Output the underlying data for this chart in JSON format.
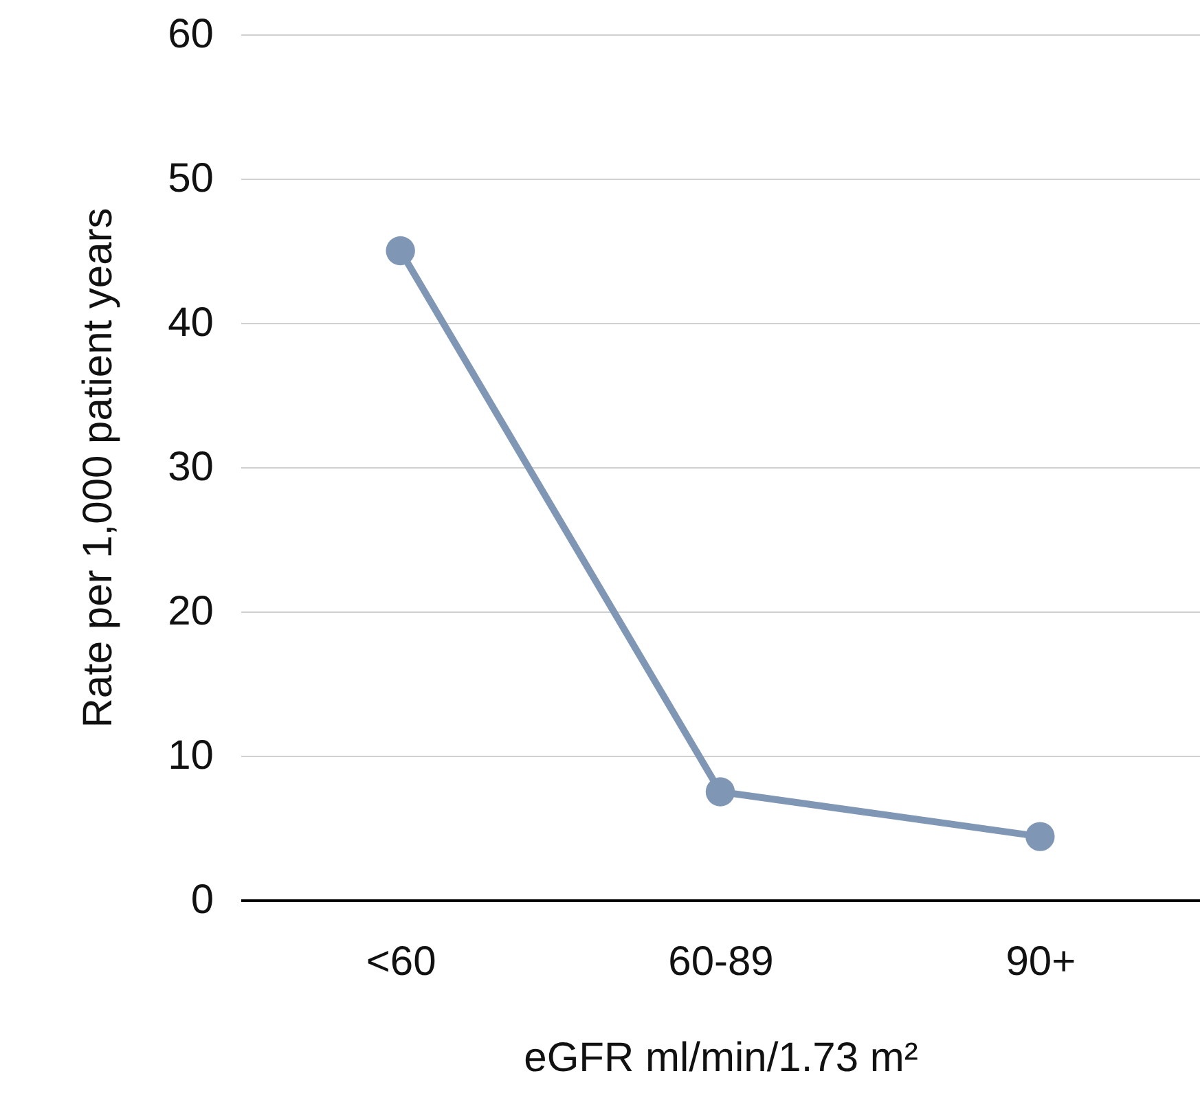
{
  "chart_data": {
    "type": "line",
    "xlabel": "eGFR ml/min/1.73 m²",
    "ylabel": "Rate per 1,000 patient years",
    "categories": [
      "<60",
      "60-89",
      "90+"
    ],
    "series": [
      {
        "color": "#7f97b5",
        "values": [
          45,
          7.5,
          4.4
        ]
      }
    ],
    "ylim": [
      0,
      60
    ],
    "yticks": [
      0,
      10,
      20,
      30,
      40,
      50,
      60
    ],
    "grid": "y",
    "marker": "circle",
    "line_style": "solid"
  }
}
